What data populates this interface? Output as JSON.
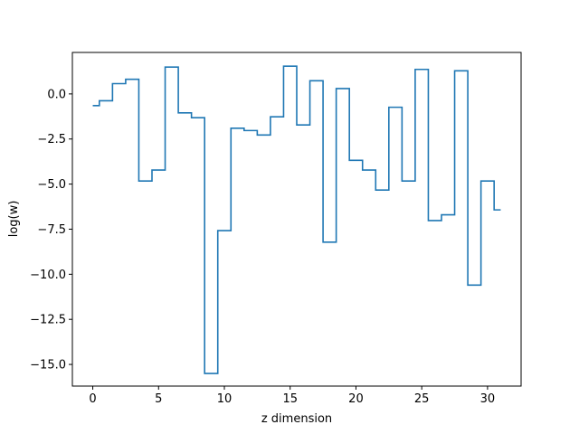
{
  "chart_data": {
    "type": "line",
    "step": "mid",
    "xlabel": "z dimension",
    "ylabel": "log(w)",
    "xlim": [
      -1.55,
      32.55
    ],
    "ylim": [
      -16.2,
      2.3
    ],
    "xticks": [
      0,
      5,
      10,
      15,
      20,
      25,
      30
    ],
    "xtick_labels": [
      "0",
      "5",
      "10",
      "15",
      "20",
      "25",
      "30"
    ],
    "yticks": [
      0.0,
      -2.5,
      -5.0,
      -7.5,
      -10.0,
      -12.5,
      -15.0
    ],
    "ytick_labels": [
      "0.0",
      "−2.5",
      "−5.0",
      "−7.5",
      "−10.0",
      "−12.5",
      "−15.0"
    ],
    "grid": false,
    "series": [
      {
        "color": "#1f77b4",
        "x": [
          0,
          1,
          2,
          3,
          4,
          5,
          6,
          7,
          8,
          9,
          10,
          11,
          12,
          13,
          14,
          15,
          16,
          17,
          18,
          19,
          20,
          21,
          22,
          23,
          24,
          25,
          26,
          27,
          28,
          29,
          30,
          31
        ],
        "values": [
          -0.65,
          -0.38,
          0.57,
          0.81,
          -4.83,
          -4.22,
          1.49,
          -1.05,
          -1.32,
          -15.5,
          -7.58,
          -1.9,
          -2.03,
          -2.28,
          -1.27,
          1.54,
          -1.72,
          0.73,
          -8.22,
          0.3,
          -3.68,
          -4.22,
          -5.33,
          -0.74,
          -4.83,
          1.36,
          -7.02,
          -6.7,
          1.28,
          -10.6,
          -4.83,
          -6.43
        ]
      }
    ]
  }
}
